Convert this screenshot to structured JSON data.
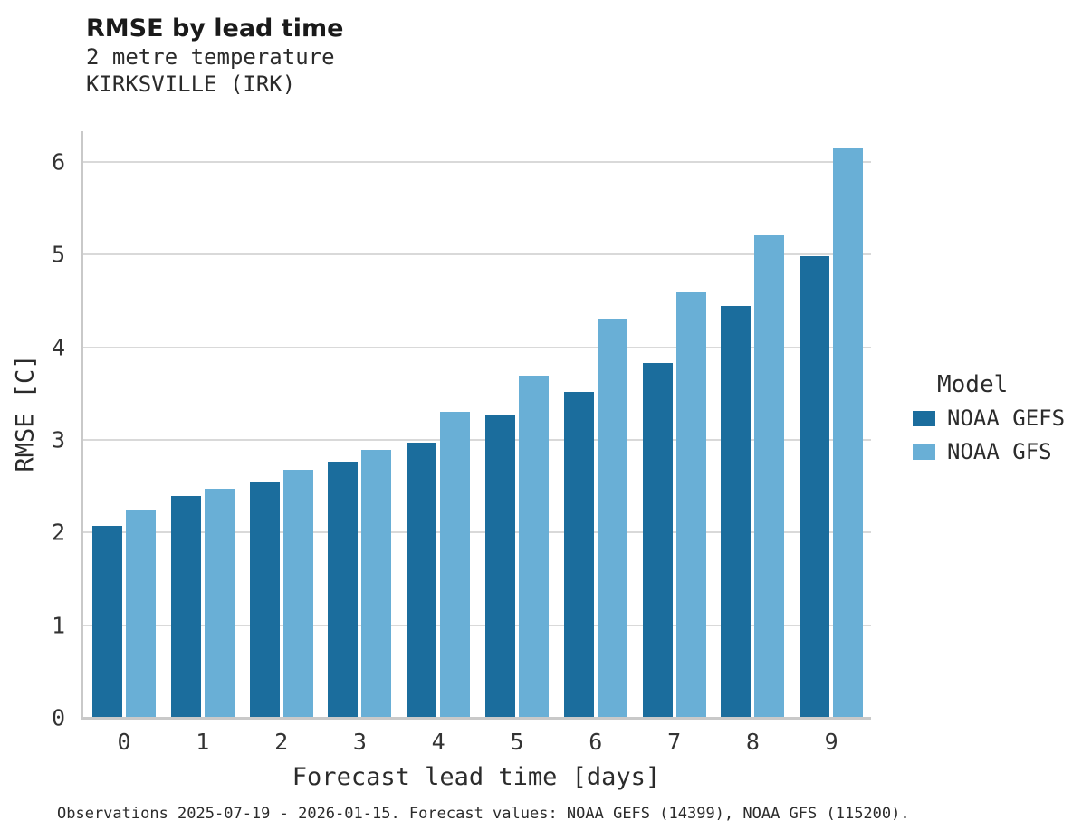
{
  "title": "RMSE by lead time",
  "subtitle_line1": "2 metre temperature",
  "subtitle_line2": "KIRKSVILLE (IRK)",
  "legend": {
    "title": "Model",
    "entries": [
      {
        "label": "NOAA GEFS",
        "color": "#1b6d9d"
      },
      {
        "label": "NOAA GFS",
        "color": "#69afd6"
      }
    ]
  },
  "footer": "Observations 2025-07-19 - 2026-01-15. Forecast values: NOAA GEFS (14399), NOAA GFS (115200).",
  "colors": {
    "gefs_dark_blue": "#1b6d9d",
    "gfs_light_blue": "#69afd6",
    "gridline": "#d9d9d9",
    "spine": "#c9c9c9"
  },
  "chart_data": {
    "type": "bar",
    "title": "RMSE by lead time",
    "subtitle": [
      "2 metre temperature",
      "KIRKSVILLE (IRK)"
    ],
    "categories": [
      "0",
      "1",
      "2",
      "3",
      "4",
      "5",
      "6",
      "7",
      "8",
      "9"
    ],
    "series": [
      {
        "name": "NOAA GEFS",
        "color": "#1b6d9d",
        "values": [
          2.07,
          2.39,
          2.54,
          2.76,
          2.97,
          3.27,
          3.52,
          3.83,
          4.44,
          4.98
        ]
      },
      {
        "name": "NOAA GFS",
        "color": "#69afd6",
        "values": [
          2.25,
          2.47,
          2.68,
          2.89,
          3.3,
          3.69,
          4.31,
          4.59,
          5.21,
          6.15
        ]
      }
    ],
    "xlabel": "Forecast lead time [days]",
    "ylabel": "RMSE [C]",
    "ylim": [
      0,
      6.33
    ],
    "yticks": [
      0,
      1,
      2,
      3,
      4,
      5,
      6
    ],
    "grid": "horizontal",
    "legend_position": "right",
    "legend_title": "Model"
  }
}
